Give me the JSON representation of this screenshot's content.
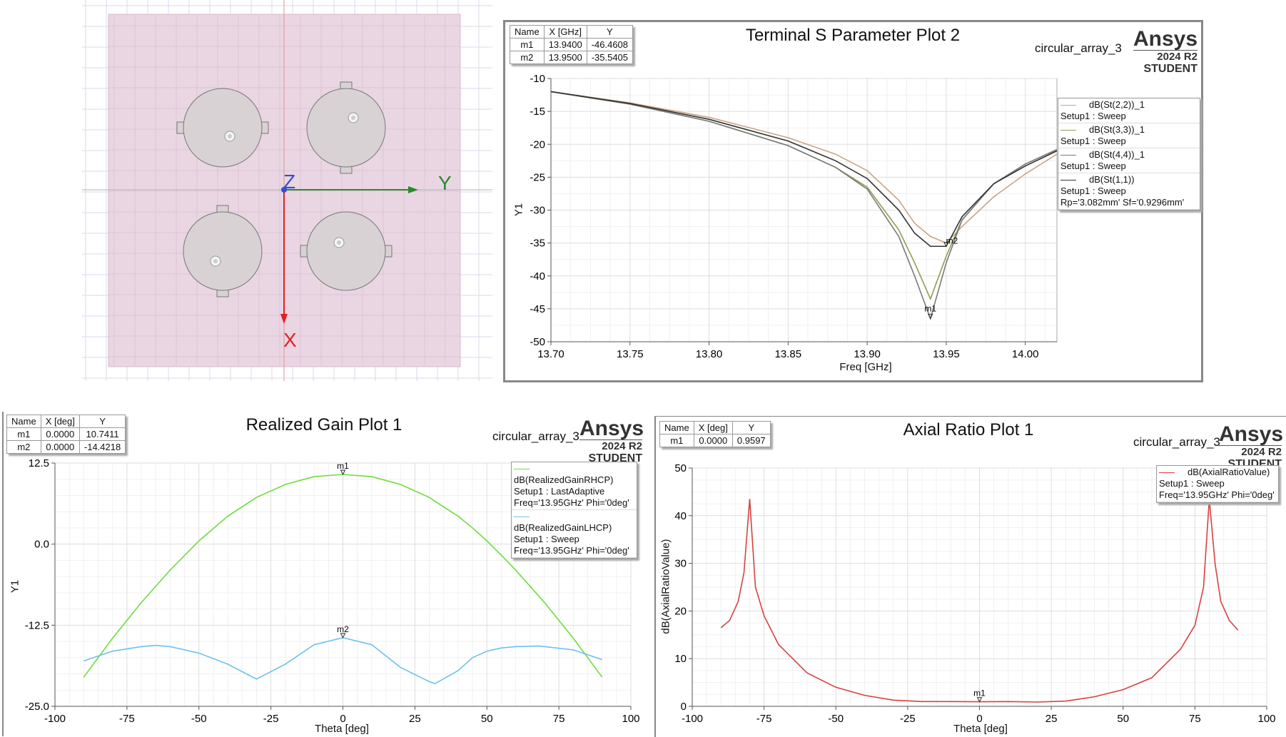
{
  "geometry_view": {
    "axis_labels": {
      "z": "Z",
      "y": "Y",
      "x": "X"
    },
    "colors": {
      "substrate": "#e8d4e0",
      "patch": "#d8d2d4",
      "x_axis": "#e02020",
      "y_axis": "#2a8a2a",
      "z_axis": "#3050d0"
    }
  },
  "chart_data": [
    {
      "type": "line",
      "title": "Terminal S Parameter Plot 2",
      "project": "circular_array_3",
      "logo": {
        "brand": "Ansys",
        "version": "2024 R2",
        "edition": "STUDENT"
      },
      "xlabel": "Freq [GHz]",
      "ylabel": "Y1",
      "xlim": [
        13.7,
        14.02
      ],
      "ylim": [
        -50,
        -10
      ],
      "xticks": [
        "13.70",
        "13.75",
        "13.80",
        "13.85",
        "13.90",
        "13.95",
        "14.00"
      ],
      "yticks": [
        "-10",
        "-15",
        "-20",
        "-25",
        "-30",
        "-35",
        "-40",
        "-45",
        "-50"
      ],
      "grid": true,
      "legend_position": "right",
      "x": [
        13.7,
        13.75,
        13.8,
        13.85,
        13.88,
        13.9,
        13.92,
        13.93,
        13.94,
        13.95,
        13.96,
        13.98,
        14.0,
        14.02
      ],
      "series": [
        {
          "name": "dB(St(2,2))_1",
          "setup": "Setup1 : Sweep",
          "color": "#c9a584",
          "values": [
            -12,
            -13.7,
            -15.9,
            -19,
            -21.5,
            -24,
            -28.5,
            -32,
            -34,
            -35,
            -32.5,
            -28,
            -24.5,
            -21.5
          ]
        },
        {
          "name": "dB(St(3,3))_1",
          "setup": "Setup1 : Sweep",
          "color": "#8aa050",
          "values": [
            -12,
            -13.9,
            -16.5,
            -20.2,
            -23.5,
            -26.5,
            -33,
            -38,
            -43.5,
            -37,
            -31.5,
            -26,
            -23,
            -20.8
          ]
        },
        {
          "name": "dB(St(4,4))_1",
          "setup": "Setup1 : Sweep",
          "color": "#7a7a7a",
          "values": [
            -12,
            -13.9,
            -16.5,
            -20.2,
            -23.5,
            -26.8,
            -34,
            -40,
            -46.5,
            -38,
            -31.5,
            -26,
            -23,
            -20.8
          ]
        },
        {
          "name": "dB(St(1,1))",
          "setup": "Setup1 : Sweep",
          "extra": "Rp='3.082mm' Sf='0.9296mm'",
          "color": "#333333",
          "values": [
            -12,
            -13.8,
            -16.2,
            -19.5,
            -22.5,
            -25.2,
            -30,
            -33.5,
            -35.5,
            -35.5,
            -31,
            -26,
            -23.3,
            -21
          ]
        }
      ],
      "markers": {
        "headers": [
          "Name",
          "X [GHz]",
          "Y"
        ],
        "rows": [
          [
            "m1",
            "13.9400",
            "-46.4608"
          ],
          [
            "m2",
            "13.9500",
            "-35.5405"
          ]
        ]
      }
    },
    {
      "type": "line",
      "title": "Realized Gain Plot 1",
      "project": "circular_array_3",
      "logo": {
        "brand": "Ansys",
        "version": "2024 R2",
        "edition": "STUDENT"
      },
      "xlabel": "Theta [deg]",
      "ylabel": "Y1",
      "xlim": [
        -100,
        100
      ],
      "ylim": [
        -25,
        12.5
      ],
      "xticks": [
        "-100",
        "-75",
        "-50",
        "-25",
        "0",
        "25",
        "50",
        "75",
        "100"
      ],
      "yticks": [
        "12.5",
        "0.0",
        "-12.5",
        "-25.0"
      ],
      "grid": true,
      "legend_position": "top-right",
      "x": [
        -90,
        -80,
        -70,
        -65,
        -60,
        -50,
        -40,
        -30,
        -20,
        -10,
        0,
        10,
        20,
        30,
        32,
        40,
        45,
        50,
        55,
        60,
        68,
        70,
        80,
        90
      ],
      "series": [
        {
          "name": "dB(RealizedGainRHCP)",
          "setup": "Setup1 : LastAdaptive",
          "extra": "Freq='13.95GHz' Phi='0deg'",
          "color": "#6fdc3c",
          "values": [
            -20.5,
            -14.5,
            -9,
            -6.5,
            -4,
            0.5,
            4.3,
            7.2,
            9.2,
            10.4,
            10.74,
            10.4,
            9.2,
            7.2,
            6.6,
            4.3,
            2.5,
            0.5,
            -1.7,
            -4,
            -8,
            -9,
            -14.5,
            -20.5
          ]
        },
        {
          "name": "dB(RealizedGainLHCP)",
          "setup": "Setup1 : Sweep",
          "extra": "Freq='13.95GHz' Phi='0deg'",
          "color": "#6cc0f0",
          "values": [
            -18,
            -16.5,
            -15.8,
            -15.6,
            -15.8,
            -16.8,
            -18.5,
            -20.8,
            -18.5,
            -15.5,
            -14.42,
            -15.5,
            -19,
            -21.2,
            -21.5,
            -19.5,
            -17.5,
            -16.5,
            -16,
            -15.8,
            -15.7,
            -15.8,
            -16.3,
            -17.8
          ]
        }
      ],
      "markers": {
        "headers": [
          "Name",
          "X [deg]",
          "Y"
        ],
        "rows": [
          [
            "m1",
            "0.0000",
            "10.7411"
          ],
          [
            "m2",
            "0.0000",
            "-14.4218"
          ]
        ]
      }
    },
    {
      "type": "line",
      "title": "Axial Ratio Plot 1",
      "project": "circular_array_3",
      "logo": {
        "brand": "Ansys",
        "version": "2024 R2",
        "edition": "STUDENT"
      },
      "xlabel": "Theta [deg]",
      "ylabel": "dB(AxialRatioValue)",
      "xlim": [
        -100,
        100
      ],
      "ylim": [
        0,
        50
      ],
      "xticks": [
        "-100",
        "-75",
        "-50",
        "-25",
        "0",
        "25",
        "50",
        "75",
        "100"
      ],
      "yticks": [
        "50",
        "40",
        "30",
        "20",
        "10",
        "0"
      ],
      "grid": true,
      "legend_position": "top-right",
      "x": [
        -90,
        -87,
        -84,
        -82,
        -80,
        -78,
        -75,
        -70,
        -60,
        -50,
        -40,
        -30,
        -20,
        -10,
        0,
        10,
        20,
        30,
        40,
        50,
        60,
        70,
        75,
        78,
        80,
        82,
        84,
        87,
        90
      ],
      "series": [
        {
          "name": "dB(AxialRatioValue)",
          "setup": "Setup1 : Sweep",
          "extra": "Freq='13.95GHz' Phi='0deg'",
          "color": "#d94040",
          "values": [
            16.5,
            18,
            22,
            28,
            43.5,
            25,
            19,
            13,
            7,
            4,
            2.3,
            1.3,
            1,
            1,
            0.96,
            1,
            0.9,
            1.1,
            2,
            3.5,
            6,
            12,
            17,
            25,
            43.5,
            30,
            22,
            18,
            16
          ]
        }
      ],
      "markers": {
        "headers": [
          "Name",
          "X [deg]",
          "Y"
        ],
        "rows": [
          [
            "m1",
            "0.0000",
            "0.9597"
          ]
        ]
      }
    }
  ]
}
